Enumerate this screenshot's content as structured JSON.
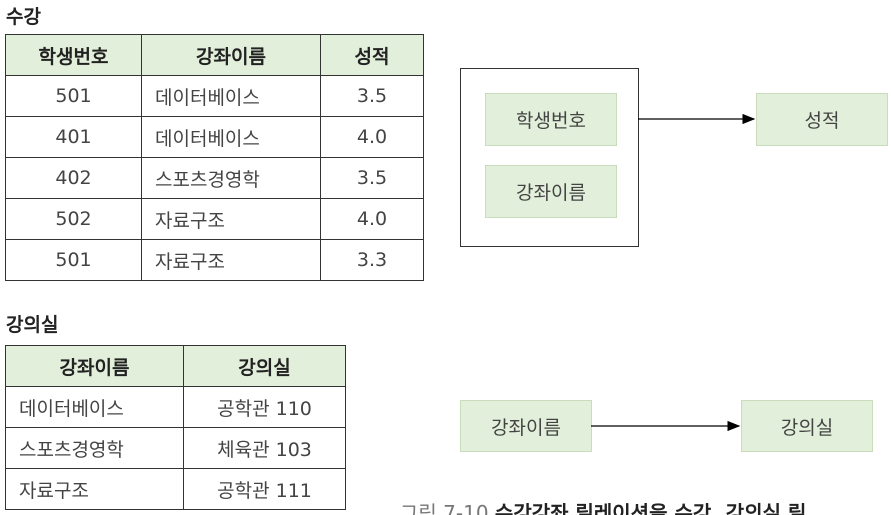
{
  "table1": {
    "title": "수강",
    "header": [
      "학생번호",
      "강좌이름",
      "성적"
    ],
    "rows": [
      [
        "501",
        "데이터베이스",
        "3.5"
      ],
      [
        "401",
        "데이터베이스",
        "4.0"
      ],
      [
        "402",
        "스포츠경영학",
        "3.5"
      ],
      [
        "502",
        "자료구조",
        "4.0"
      ],
      [
        "501",
        "자료구조",
        "3.3"
      ]
    ]
  },
  "table2": {
    "title": "강의실",
    "header": [
      "강좌이름",
      "강의실"
    ],
    "rows": [
      [
        "데이터베이스",
        "공학관 110"
      ],
      [
        "스포츠경영학",
        "체육관 103"
      ],
      [
        "자료구조",
        "공학관 111"
      ]
    ]
  },
  "diagram1": {
    "sources": [
      "학생번호",
      "강좌이름"
    ],
    "target": "성적"
  },
  "diagram2": {
    "source": "강좌이름",
    "target": "강의실"
  },
  "caption": {
    "number": "그림 7-10",
    "text": "수강강좌 릴레이션을 수강, 강의실 릴"
  }
}
